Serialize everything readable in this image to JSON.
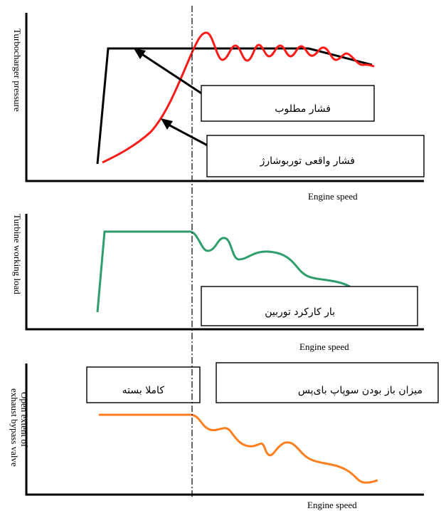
{
  "panel1": {
    "ylabel": "Turbocharger pressure",
    "xlabel": "Engine speed",
    "desired_label": "فشار مطلوب",
    "actual_label": "فشار واقعی توربوشارژ",
    "colors": {
      "desired": "#000000",
      "actual": "#ff1a1a"
    }
  },
  "panel2": {
    "ylabel": "Turbine working load",
    "xlabel": "Engine speed",
    "load_label": "بار کارکرد توربین",
    "colors": {
      "load": "#2e9e6a"
    }
  },
  "panel3": {
    "ylabel_line1": "Open extent of",
    "ylabel_line2": "exhaust bypass valve",
    "xlabel": "Engine speed",
    "closed_label": "کاملا بسته",
    "opening_label": "میزان باز بودن سوپاپ بای‌پس",
    "colors": {
      "valve": "#ff7f1e"
    }
  }
}
